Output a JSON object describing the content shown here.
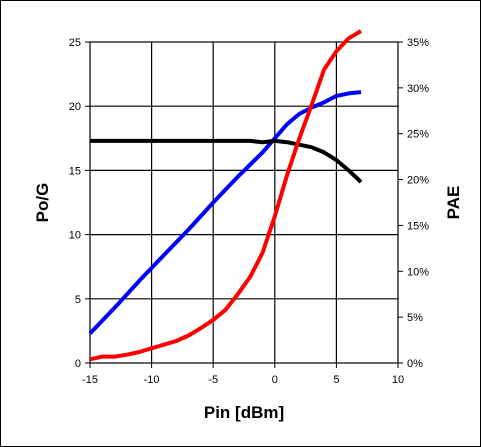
{
  "chart_data": {
    "type": "line",
    "title": "",
    "xlabel": "Pin [dBm]",
    "ylabel": "Po/G",
    "y2label": "PAE",
    "xlim": [
      -15,
      10
    ],
    "ylim": [
      0,
      25
    ],
    "y2lim": [
      0,
      0.35
    ],
    "grid": true,
    "legend": "none",
    "x_ticks": [
      -15,
      -10,
      -5,
      0,
      5,
      10
    ],
    "x_tick_labels": [
      "-15",
      "-10",
      "-5",
      "0",
      "5",
      "10"
    ],
    "y_ticks": [
      0,
      5,
      10,
      15,
      20,
      25
    ],
    "y_tick_labels": [
      "0",
      "5",
      "10",
      "15",
      "20",
      "25"
    ],
    "y2_ticks": [
      0,
      0.05,
      0.1,
      0.15,
      0.2,
      0.25,
      0.3,
      0.35
    ],
    "y2_tick_labels": [
      "0%",
      "5%",
      "10%",
      "15%",
      "20%",
      "25%",
      "30%",
      "35%"
    ],
    "series": [
      {
        "color": "#0000ff",
        "axis": "left",
        "x": [
          -15,
          -13,
          -11,
          -9,
          -7,
          -5,
          -3,
          -1,
          0,
          1,
          2,
          3,
          4,
          5,
          6,
          7
        ],
        "y": [
          2.3,
          4.3,
          6.4,
          8.4,
          10.4,
          12.5,
          14.5,
          16.4,
          17.5,
          18.6,
          19.4,
          19.9,
          20.3,
          20.8,
          21.0,
          21.1
        ]
      },
      {
        "color": "#000000",
        "axis": "left",
        "x": [
          -15,
          -13,
          -11,
          -9,
          -7,
          -5,
          -3,
          -2,
          -1,
          0,
          1,
          2,
          3,
          4,
          5,
          6,
          7
        ],
        "y": [
          17.3,
          17.3,
          17.3,
          17.3,
          17.3,
          17.3,
          17.3,
          17.3,
          17.2,
          17.3,
          17.2,
          17.0,
          16.8,
          16.4,
          15.8,
          15.0,
          14.1
        ]
      },
      {
        "color": "#ff0000",
        "axis": "right",
        "x": [
          -15,
          -14,
          -13,
          -12,
          -11,
          -10,
          -9,
          -8,
          -7,
          -6,
          -5,
          -4,
          -3,
          -2,
          -1,
          0,
          1,
          2,
          3,
          4,
          5,
          6,
          7
        ],
        "y": [
          0.004,
          0.007,
          0.007,
          0.009,
          0.012,
          0.016,
          0.02,
          0.024,
          0.03,
          0.038,
          0.047,
          0.058,
          0.075,
          0.094,
          0.12,
          0.16,
          0.205,
          0.245,
          0.282,
          0.32,
          0.34,
          0.354,
          0.362
        ]
      }
    ]
  }
}
